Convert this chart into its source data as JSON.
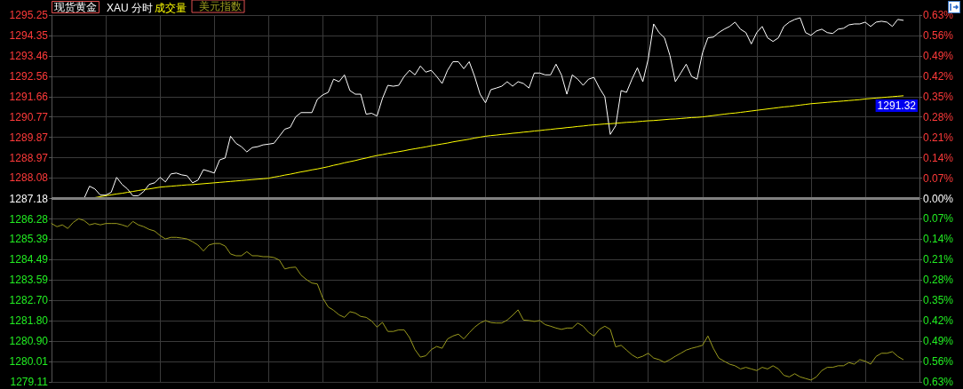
{
  "chart_data": {
    "type": "line",
    "title": "现货黄金",
    "subtitle": "XAU 分时",
    "annotations": [
      "成交量",
      "1291.32"
    ],
    "categories": [
      null,
      null,
      null,
      null,
      null,
      null,
      null,
      null,
      null,
      null,
      null,
      null,
      null,
      null,
      null,
      null,
      null,
      null,
      null,
      null,
      null,
      null,
      null,
      null,
      null,
      null,
      null,
      null,
      null,
      null,
      null,
      null,
      null,
      null,
      null,
      null,
      null,
      null,
      null,
      null,
      null,
      null,
      null,
      null,
      null,
      null,
      null,
      null,
      null,
      null,
      null,
      null,
      null,
      null,
      null,
      null,
      null,
      null,
      null,
      null,
      null,
      null,
      null,
      null,
      null,
      null,
      null,
      null,
      null,
      null,
      null,
      null,
      null,
      null,
      null,
      null,
      null,
      null,
      null,
      null,
      null,
      null,
      null,
      null,
      null,
      null,
      null,
      null,
      null,
      null,
      null,
      null,
      null,
      null,
      null,
      null,
      null,
      null,
      null,
      null,
      null,
      null,
      null,
      null,
      null,
      null,
      null,
      null,
      null,
      null,
      null,
      null,
      null,
      null,
      null,
      null,
      null,
      null,
      null,
      null,
      null,
      null,
      null,
      null,
      null,
      null,
      null,
      null,
      null,
      null,
      null,
      null,
      null,
      null,
      null,
      null,
      null,
      null,
      null,
      null,
      null,
      null,
      null,
      null,
      null,
      null,
      null,
      null,
      null,
      null,
      null,
      null,
      null,
      null,
      null,
      null,
      null,
      null,
      null,
      null,
      null
    ],
    "series": [
      {
        "color": "#ffffff",
        "values": [
          1287.18,
          1287.18,
          1287.18,
          1287.18,
          1287.18,
          1287.18,
          1287.18,
          1287.72,
          1287.6,
          1287.33,
          1287.33,
          1287.45,
          1288.11,
          1287.8,
          1287.6,
          1287.3,
          1287.3,
          1287.49,
          1287.8,
          1287.87,
          1288.11,
          1287.91,
          1288.26,
          1288.3,
          1288.22,
          1288.18,
          1287.87,
          1287.99,
          1288.45,
          1288.38,
          1288.3,
          1288.88,
          1288.96,
          1289.92,
          1289.61,
          1289.46,
          1289.23,
          1289.42,
          1289.46,
          1289.54,
          1289.57,
          1289.61,
          1289.92,
          1290.23,
          1290.31,
          1290.77,
          1290.96,
          1290.96,
          1290.96,
          1291.54,
          1291.74,
          1291.85,
          1292.43,
          1292.32,
          1292.62,
          1291.93,
          1291.77,
          1291.77,
          1290.89,
          1290.93,
          1290.81,
          1291.58,
          1292.16,
          1292.12,
          1292.16,
          1292.55,
          1292.82,
          1292.62,
          1293.01,
          1292.74,
          1292.82,
          1292.55,
          1292.24,
          1292.82,
          1293.2,
          1293.2,
          1292.89,
          1293.2,
          1292.55,
          1291.77,
          1291.39,
          1291.97,
          1292.04,
          1292.12,
          1292.32,
          1292.12,
          1292.32,
          1292.24,
          1292.04,
          1292.7,
          1292.7,
          1292.62,
          1292.62,
          1293.09,
          1292.62,
          1291.77,
          1292.62,
          1292.43,
          1292.16,
          1292.43,
          1292.51,
          1292.04,
          1291.66,
          1290.0,
          1290.38,
          1291.93,
          1291.85,
          1292.43,
          1292.93,
          1292.32,
          1293.32,
          1294.86,
          1294.48,
          1294.25,
          1293.47,
          1292.32,
          1292.7,
          1293.09,
          1292.55,
          1292.43,
          1293.59,
          1294.25,
          1294.28,
          1294.48,
          1294.63,
          1294.75,
          1294.94,
          1294.63,
          1294.48,
          1293.98,
          1294.48,
          1294.75,
          1294.25,
          1294.09,
          1294.25,
          1294.75,
          1294.94,
          1295.06,
          1295.13,
          1294.48,
          1294.36,
          1294.55,
          1294.63,
          1294.48,
          1294.44,
          1294.63,
          1294.67,
          1294.82,
          1294.86,
          1294.86,
          1294.94,
          1294.75,
          1294.94,
          1294.98,
          1294.94,
          1294.75,
          1295.06,
          1295.02,
          null,
          null,
          null
        ]
      },
      {
        "color": "#ffff00",
        "values": [
          null,
          null,
          null,
          null,
          null,
          null,
          null,
          null,
          1287.22,
          1287.26,
          1287.3,
          1287.34,
          1287.38,
          1287.41,
          1287.45,
          1287.49,
          1287.53,
          1287.57,
          1287.6,
          1287.64,
          1287.68,
          1287.7,
          1287.72,
          1287.74,
          1287.76,
          1287.78,
          1287.79,
          1287.81,
          1287.83,
          1287.85,
          1287.87,
          1287.89,
          1287.91,
          1287.93,
          1287.95,
          1287.97,
          1287.99,
          1288.01,
          1288.03,
          1288.05,
          1288.07,
          1288.12,
          1288.16,
          1288.21,
          1288.25,
          1288.3,
          1288.35,
          1288.39,
          1288.44,
          1288.48,
          1288.53,
          1288.58,
          1288.64,
          1288.69,
          1288.75,
          1288.8,
          1288.85,
          1288.91,
          1288.96,
          1289.02,
          1289.07,
          1289.11,
          1289.16,
          1289.2,
          1289.24,
          1289.28,
          1289.33,
          1289.37,
          1289.41,
          1289.45,
          1289.5,
          1289.54,
          1289.58,
          1289.62,
          1289.67,
          1289.71,
          1289.75,
          1289.79,
          1289.84,
          1289.88,
          1289.92,
          1289.95,
          1289.97,
          1290.0,
          1290.02,
          1290.05,
          1290.07,
          1290.1,
          1290.12,
          1290.15,
          1290.17,
          1290.2,
          1290.22,
          1290.25,
          1290.27,
          1290.3,
          1290.32,
          1290.35,
          1290.37,
          1290.4,
          1290.42,
          1290.44,
          1290.46,
          1290.47,
          1290.49,
          1290.51,
          1290.53,
          1290.54,
          1290.56,
          1290.58,
          1290.6,
          1290.61,
          1290.63,
          1290.65,
          1290.67,
          1290.68,
          1290.7,
          1290.72,
          1290.74,
          1290.75,
          1290.77,
          1290.8,
          1290.83,
          1290.86,
          1290.89,
          1290.92,
          1290.94,
          1290.97,
          1291.0,
          1291.03,
          1291.06,
          1291.09,
          1291.12,
          1291.15,
          1291.18,
          1291.21,
          1291.23,
          1291.26,
          1291.29,
          1291.32,
          1291.35,
          1291.37,
          1291.39,
          1291.41,
          1291.43,
          1291.45,
          1291.47,
          1291.49,
          1291.51,
          1291.53,
          1291.56,
          1291.58,
          1291.6,
          1291.62,
          1291.64,
          1291.66,
          1291.68,
          1291.7,
          null,
          null,
          null
        ]
      },
      {
        "name": "美元指数",
        "color": "#9a9a1e",
        "values": [
          1286.08,
          1285.94,
          1286.02,
          1285.86,
          1286.13,
          1286.29,
          1286.21,
          1286.02,
          1286.08,
          1286.02,
          1286.08,
          1286.08,
          1286.08,
          1286.02,
          1285.94,
          1286.17,
          1286.02,
          1285.94,
          1285.82,
          1285.75,
          1285.55,
          1285.4,
          1285.47,
          1285.47,
          1285.44,
          1285.4,
          1285.28,
          1285.13,
          1284.87,
          1285.13,
          1285.2,
          1285.2,
          1285.09,
          1284.74,
          1284.66,
          1284.66,
          1284.84,
          1284.66,
          1284.66,
          1284.62,
          1284.62,
          1284.58,
          1284.47,
          1284.08,
          1284.14,
          1284.16,
          1283.81,
          1283.61,
          1283.46,
          1283.42,
          1282.8,
          1282.41,
          1282.26,
          1282.06,
          1281.95,
          1282.2,
          1282.14,
          1281.99,
          1281.95,
          1281.79,
          1281.52,
          1281.73,
          1281.33,
          1281.33,
          1281.4,
          1281.4,
          1281.06,
          1280.53,
          1280.2,
          1280.26,
          1280.53,
          1280.67,
          1280.59,
          1281.0,
          1281.13,
          1281.21,
          1281.0,
          1281.27,
          1281.52,
          1281.7,
          1281.81,
          1281.72,
          1281.7,
          1281.7,
          1281.83,
          1282.04,
          1282.28,
          1281.83,
          1281.81,
          1281.77,
          1281.81,
          1281.63,
          1281.56,
          1281.48,
          1281.42,
          1281.48,
          1281.48,
          1281.7,
          1281.56,
          1281.29,
          1281.13,
          1281.42,
          1281.56,
          1281.42,
          1280.65,
          1280.72,
          1280.51,
          1280.3,
          1280.16,
          1280.24,
          1280.37,
          1280.16,
          1280.09,
          1279.97,
          1280.09,
          1280.24,
          1280.37,
          1280.51,
          1280.59,
          1280.65,
          1280.72,
          1281.13,
          1280.59,
          1280.16,
          1280.02,
          1279.89,
          1279.82,
          1279.68,
          1279.75,
          1279.68,
          1279.61,
          1279.75,
          1279.68,
          1279.82,
          1279.68,
          1279.4,
          1279.33,
          1279.47,
          1279.33,
          1279.26,
          1279.19,
          1279.33,
          1279.61,
          1279.75,
          1279.75,
          1279.82,
          1279.82,
          1279.96,
          1279.89,
          1280.09,
          1280.02,
          1279.89,
          1280.23,
          1280.37,
          1280.37,
          1280.44,
          1280.23,
          1280.09,
          null,
          null,
          null
        ]
      }
    ],
    "ylim": [
      1279.11,
      1295.25
    ],
    "yticks": [
      1279.11,
      1280.01,
      {
        "value": 1280.9,
        "label": "1280.90"
      },
      {
        "value": 1281.8,
        "label": "1281.80"
      },
      {
        "value": 1282.7,
        "label": "1282.70"
      },
      1283.59,
      1284.49,
      1285.39,
      1286.28,
      1287.18,
      1288.08,
      1288.97,
      1289.87,
      1290.77,
      1291.66,
      1292.56,
      1293.46,
      1294.35,
      1295.25
    ],
    "y2lim": [
      -0.63,
      0.63
    ],
    "y2ticks": [
      {
        "value": -0.63,
        "label": "0.63%"
      },
      {
        "value": -0.56,
        "label": "0.56%"
      },
      {
        "value": -0.49,
        "label": "0.49%"
      },
      {
        "value": -0.42,
        "label": "0.42%"
      },
      {
        "value": -0.35,
        "label": "0.35%"
      },
      {
        "value": -0.28,
        "label": "0.28%"
      },
      {
        "value": -0.21,
        "label": "0.21%"
      },
      {
        "value": -0.14,
        "label": "0.14%"
      },
      {
        "value": -0.07,
        "label": "0.07%"
      },
      {
        "value": 0,
        "label": "0.00%"
      },
      {
        "value": 0.07,
        "label": "0.07%"
      },
      {
        "value": 0.14,
        "label": "0.14%"
      },
      {
        "value": 0.21,
        "label": "0.21%"
      },
      {
        "value": 0.28,
        "label": "0.28%"
      },
      {
        "value": 0.35,
        "label": "0.35%"
      },
      {
        "value": 0.42,
        "label": "0.42%"
      },
      {
        "value": 0.49,
        "label": "0.49%"
      },
      {
        "value": 0.56,
        "label": "0.56%"
      },
      {
        "value": 0.63,
        "label": "0.63%"
      }
    ],
    "ref_lines": [
      {
        "axis": "y",
        "value": 1287.18,
        "label": null,
        "color": "#808080"
      }
    ],
    "grid": true,
    "legend": "top left",
    "marker": "none",
    "line_style": "solid"
  }
}
